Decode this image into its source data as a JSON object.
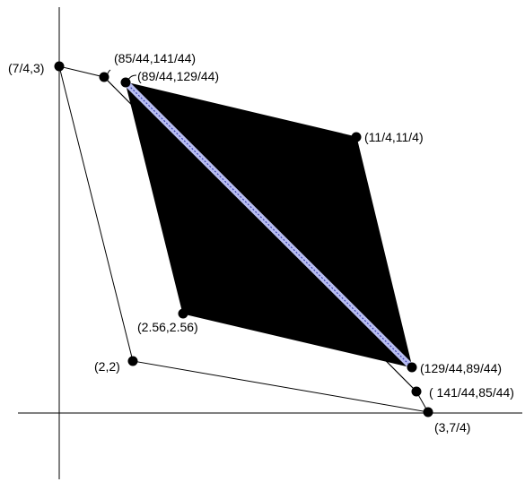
{
  "figure": {
    "colors": {
      "background": "#ffffff",
      "ink": "#000000",
      "highlight_band": "#b8bdf0",
      "highlight_core": "#3a3fb0"
    },
    "labels": {
      "p_7_4_3": "(7/4,3)",
      "p_85_141": "(85/44,141/44)",
      "p_89_129": "(89/44,129/44)",
      "p_11_4": "(11/4,11/4)",
      "p_2_56": "(2.56,2.56)",
      "p_2_2": "(2,2)",
      "p_129_89": "(129/44,89/44)",
      "p_141_85": "( 141/44,85/44)",
      "p_3_7_4": "(3,7/4)"
    }
  }
}
